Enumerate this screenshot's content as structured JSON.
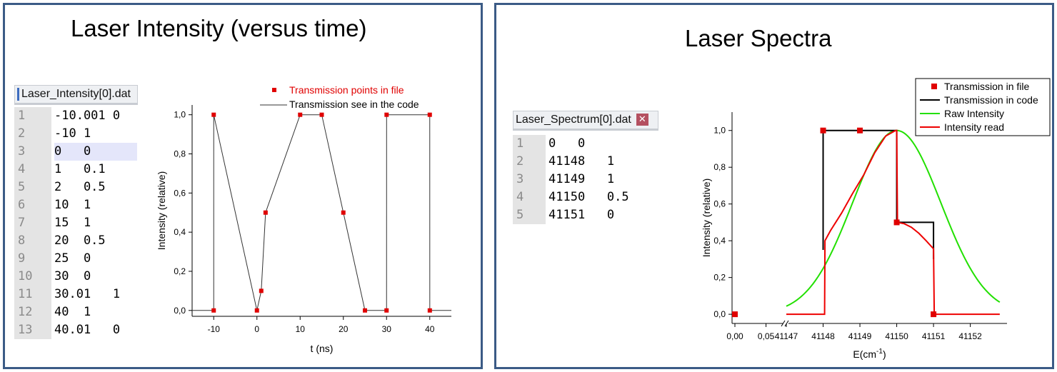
{
  "left_panel": {
    "title": "Laser Intensity (versus time)",
    "file_tab": "Laser_Intensity[0].dat",
    "file_lines": [
      {
        "n": "1",
        "text": "-10.001 0"
      },
      {
        "n": "2",
        "text": "-10 1"
      },
      {
        "n": "3",
        "text": "0   0"
      },
      {
        "n": "4",
        "text": "1   0.1"
      },
      {
        "n": "5",
        "text": "2   0.5"
      },
      {
        "n": "6",
        "text": "10  1"
      },
      {
        "n": "7",
        "text": "15  1"
      },
      {
        "n": "8",
        "text": "20  0.5"
      },
      {
        "n": "9",
        "text": "25  0"
      },
      {
        "n": "10",
        "text": "30  0"
      },
      {
        "n": "11",
        "text": "30.01   1"
      },
      {
        "n": "12",
        "text": "40  1"
      },
      {
        "n": "13",
        "text": "40.01   0"
      }
    ],
    "highlighted_line": 3
  },
  "right_panel": {
    "title": "Laser Spectra",
    "file_tab": "Laser_Spectrum[0].dat",
    "close_glyph": "✕",
    "file_lines": [
      {
        "n": "1",
        "text": "0   0"
      },
      {
        "n": "2",
        "text": "41148   1"
      },
      {
        "n": "3",
        "text": "41149   1"
      },
      {
        "n": "4",
        "text": "41150   0.5"
      },
      {
        "n": "5",
        "text": "41151   0"
      }
    ]
  },
  "chart_data": [
    {
      "type": "line",
      "xlabel": "t (ns)",
      "ylabel": "Intensity (relative)",
      "xlim": [
        -15,
        45
      ],
      "ylim": [
        -0.03,
        1.05
      ],
      "xticks": [
        -10,
        0,
        10,
        20,
        30,
        40
      ],
      "xtick_labels": [
        "-10",
        "0",
        "10",
        "20",
        "30",
        "40"
      ],
      "yticks": [
        0,
        0.2,
        0.4,
        0.6,
        0.8,
        1.0
      ],
      "ytick_labels": [
        "0,0",
        "0,2",
        "0,4",
        "0,6",
        "0,8",
        "1,0"
      ],
      "grid": false,
      "legend_position": "top-right",
      "colors": {
        "points": "#e00000",
        "line": "#333333",
        "legend_text_points": "#e00000"
      },
      "series": [
        {
          "name": "Transmission points in file",
          "style": "markers",
          "x": [
            -10.001,
            -10,
            0,
            1,
            2,
            10,
            15,
            20,
            25,
            30,
            30.01,
            40,
            40.01
          ],
          "y": [
            0,
            1,
            0,
            0.1,
            0.5,
            1,
            1,
            0.5,
            0,
            0,
            1,
            1,
            0
          ]
        },
        {
          "name": "Transmission see in the code",
          "style": "line",
          "x": [
            -15,
            -10.001,
            -10,
            0,
            1,
            2,
            10,
            15,
            20,
            25,
            30,
            30.01,
            40,
            40.01,
            45
          ],
          "y": [
            0,
            0,
            1,
            0,
            0.1,
            0.5,
            1,
            1,
            0.5,
            0,
            0,
            1,
            1,
            0,
            0
          ]
        }
      ]
    },
    {
      "type": "line",
      "xlabel": "E(cm",
      "xlabel_sup": "-1",
      "xlabel_suffix": ")",
      "ylabel": "Intensity (relative)",
      "axis_break": true,
      "xlim_first_segment": [
        0,
        0.07
      ],
      "xlim_second_segment": [
        41147,
        41152.9
      ],
      "ylim": [
        -0.05,
        1.1
      ],
      "xticks": [
        0,
        0.05,
        41147,
        41148,
        41149,
        41150,
        41151,
        41152
      ],
      "xtick_labels": [
        "0,00",
        "0,05",
        "41147",
        "41148",
        "41149",
        "41150",
        "41151",
        "41152"
      ],
      "yticks": [
        0,
        0.2,
        0.4,
        0.6,
        0.8,
        1.0
      ],
      "ytick_labels": [
        "0,0",
        "0,2",
        "0,4",
        "0,6",
        "0,8",
        "1,0"
      ],
      "grid": false,
      "legend_position": "top-right",
      "colors": {
        "points": "#e00000",
        "transmission": "#000000",
        "raw": "#22e000",
        "read": "#ee0000"
      },
      "series": [
        {
          "name": "Transmission  in file",
          "style": "markers",
          "x": [
            0,
            41148,
            41149,
            41150,
            41151
          ],
          "y": [
            0,
            1,
            1,
            0.5,
            0
          ]
        },
        {
          "name": "Transmission in code",
          "style": "step",
          "x": [
            41148,
            41148,
            41150,
            41150,
            41151,
            41151
          ],
          "y": [
            0.35,
            1,
            1,
            0.5,
            0.5,
            0.3
          ]
        },
        {
          "name": "Raw Intensity",
          "style": "gaussian",
          "center": 41150,
          "sigma": 1.2,
          "peak": 1,
          "x_range": [
            41147,
            41152.8
          ]
        },
        {
          "name": "Intensity read",
          "style": "line",
          "x": [
            41147,
            41148.04,
            41148.05,
            41148.2,
            41148.5,
            41148.8,
            41149.1,
            41149.4,
            41149.7,
            41149.97,
            41150,
            41150.02,
            41150.2,
            41150.4,
            41150.6,
            41150.8,
            41151,
            41151.02,
            41152.8
          ],
          "y": [
            0,
            0,
            0.4,
            0.455,
            0.55,
            0.657,
            0.757,
            0.878,
            0.97,
            1.0,
            1.0,
            0.5,
            0.493,
            0.473,
            0.441,
            0.4,
            0.356,
            0,
            0
          ]
        }
      ]
    }
  ]
}
